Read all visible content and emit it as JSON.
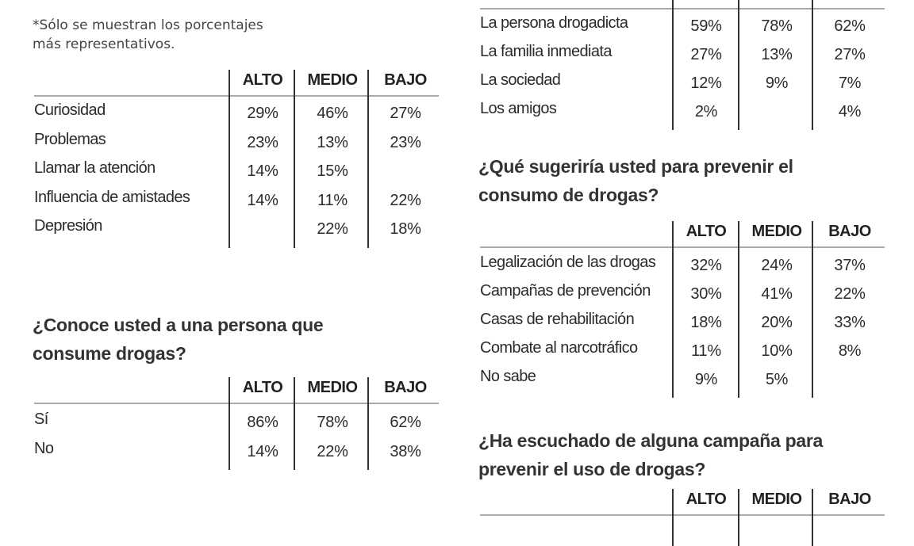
{
  "note": {
    "line1": "*Sólo se muestran los porcentajes",
    "line2": "más representativos."
  },
  "columns": [
    "ALTO",
    "MEDIO",
    "BAJO"
  ],
  "tables": [
    {
      "title": [],
      "rows": [
        {
          "label": "Curiosidad",
          "values": [
            "29%",
            "46%",
            "27%"
          ]
        },
        {
          "label": "Problemas",
          "values": [
            "23%",
            "13%",
            "23%"
          ]
        },
        {
          "label": "Llamar la atención",
          "values": [
            "14%",
            "15%",
            ""
          ]
        },
        {
          "label": "Influencia de amistades",
          "values": [
            "14%",
            "11%",
            "22%"
          ]
        },
        {
          "label": "Depresión",
          "values": [
            "",
            "22%",
            "18%"
          ]
        }
      ]
    },
    {
      "title": [
        "¿Conoce usted a una persona que",
        "consume drogas?"
      ],
      "rows": [
        {
          "label": "Sí",
          "values": [
            "86%",
            "78%",
            "62%"
          ]
        },
        {
          "label": "No",
          "values": [
            "14%",
            "22%",
            "38%"
          ]
        }
      ]
    },
    {
      "title": [],
      "rows": [
        {
          "label": "La persona drogadicta",
          "values": [
            "59%",
            "78%",
            "62%"
          ]
        },
        {
          "label": "La familia inmediata",
          "values": [
            "27%",
            "13%",
            "27%"
          ]
        },
        {
          "label": "La sociedad",
          "values": [
            "12%",
            "9%",
            "7%"
          ]
        },
        {
          "label": "Los amigos",
          "values": [
            "2%",
            "",
            "4%"
          ]
        }
      ]
    },
    {
      "title": [
        "¿Qué sugeriría usted para prevenir el",
        "consumo de drogas?"
      ],
      "rows": [
        {
          "label": "Legalización de las drogas",
          "values": [
            "32%",
            "24%",
            "37%"
          ]
        },
        {
          "label": "Campañas de prevención",
          "values": [
            "30%",
            "41%",
            "22%"
          ]
        },
        {
          "label": "Casas de rehabilitación",
          "values": [
            "18%",
            "20%",
            "33%"
          ]
        },
        {
          "label": "Combate al narcotráfico",
          "values": [
            "11%",
            "10%",
            "8%"
          ]
        },
        {
          "label": "No sabe",
          "values": [
            "9%",
            "5%",
            ""
          ]
        }
      ]
    },
    {
      "title": [
        "¿Ha escuchado de alguna campaña para",
        "prevenir el uso de drogas?"
      ],
      "rows": []
    }
  ]
}
